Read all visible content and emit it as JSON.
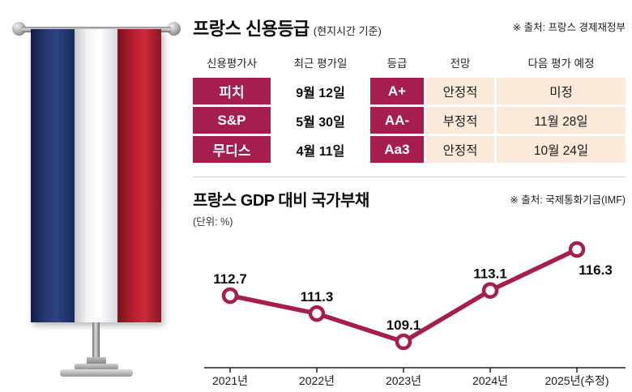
{
  "colors": {
    "maroon": "#a61e4d",
    "peach": "#fbe9da",
    "flag_blue": "#24386f",
    "flag_red": "#b81f2e",
    "axis": "#222222"
  },
  "credit_table": {
    "title": "프랑스 신용등급",
    "title_note": "(현지시간 기준)",
    "source": "※ 출처: 프랑스 경제재정부",
    "columns": [
      "신용평가사",
      "최근 평가일",
      "등급",
      "전망",
      "다음 평가 예정"
    ],
    "rows": [
      {
        "agency": "피치",
        "date": "9월 12일",
        "rating": "A+",
        "outlook": "안정적",
        "next": "미정"
      },
      {
        "agency": "S&P",
        "date": "5월 30일",
        "rating": "AA-",
        "outlook": "부정적",
        "next": "11월 28일"
      },
      {
        "agency": "무디스",
        "date": "4월 11일",
        "rating": "Aa3",
        "outlook": "안정적",
        "next": "10월 24일"
      }
    ]
  },
  "debt_section": {
    "title": "프랑스 GDP 대비 국가부채",
    "unit_note": "(단위: %)",
    "source": "※ 출처: 국제통화기금(IMF)"
  },
  "chart_data": {
    "type": "line",
    "categories": [
      "2021년",
      "2022년",
      "2023년",
      "2024년",
      "2025년(추정)"
    ],
    "values": [
      112.7,
      111.3,
      109.1,
      113.1,
      116.3
    ],
    "title": "프랑스 GDP 대비 국가부채",
    "xlabel": "",
    "ylabel": "%",
    "ylim": [
      108,
      118
    ],
    "grid": false,
    "legend": false,
    "line_color": "#a61e4d",
    "marker": "circle-open"
  }
}
